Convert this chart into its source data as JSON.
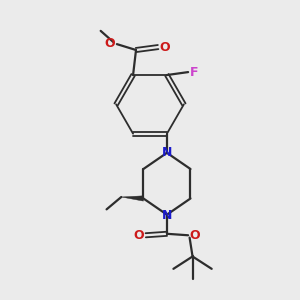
{
  "background_color": "#ebebeb",
  "bond_color": "#2d2d2d",
  "n_color": "#1a1acc",
  "o_color": "#cc1a1a",
  "f_color": "#cc44cc",
  "figsize": [
    3.0,
    3.0
  ],
  "dpi": 100,
  "xlim": [
    0,
    10
  ],
  "ylim": [
    0,
    10
  ]
}
